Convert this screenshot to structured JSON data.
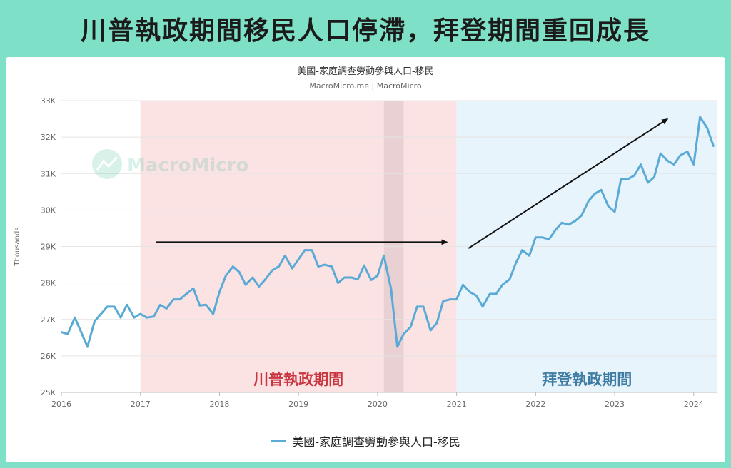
{
  "banner": {
    "title": "川普執政期間移民人口停滯，拜登期間重回成長"
  },
  "chart": {
    "title": "美國-家庭調查勞動參與人口-移民",
    "subtitle": "MacroMicro.me | MacroMicro",
    "watermark": "MacroMicro",
    "ylabel": "Thousands",
    "period_trump": "川普執政期間",
    "period_biden": "拜登執政期間",
    "legend_label": "美國-家庭調查勞動參與人口-移民"
  },
  "chart_data": {
    "type": "line",
    "title": "美國-家庭調查勞動參與人口-移民",
    "subtitle": "MacroMicro.me | MacroMicro",
    "ylabel": "Thousands",
    "xlim": [
      2016,
      2024.3
    ],
    "ylim": [
      25000,
      33000
    ],
    "x_ticks": [
      2016,
      2017,
      2018,
      2019,
      2020,
      2021,
      2022,
      2023,
      2024
    ],
    "y_ticks": [
      {
        "value": 25000,
        "label": "25K"
      },
      {
        "value": 26000,
        "label": "26K"
      },
      {
        "value": 27000,
        "label": "27K"
      },
      {
        "value": 28000,
        "label": "28K"
      },
      {
        "value": 29000,
        "label": "29K"
      },
      {
        "value": 30000,
        "label": "30K"
      },
      {
        "value": 31000,
        "label": "31K"
      },
      {
        "value": 32000,
        "label": "32K"
      },
      {
        "value": 33000,
        "label": "33K"
      }
    ],
    "grid": true,
    "legend_position": "bottom",
    "colors": {
      "line": "#5aaad6",
      "trump_band": "#fbe3e4",
      "biden_band": "#e8f4fb",
      "recession_band": "#e9d0d2",
      "trump_text": "#c9363f",
      "biden_text": "#3f7ca3"
    },
    "shaded_periods": [
      {
        "label": "川普執政期間",
        "from": 2017.0,
        "to": 2021.0
      },
      {
        "label": "拜登執政期間",
        "from": 2021.0,
        "to": 2024.3
      },
      {
        "label": "",
        "from": 2020.08,
        "to": 2020.33
      }
    ],
    "series": [
      {
        "name": "美國-家庭調查勞動參與人口-移民",
        "points": [
          [
            2016.0,
            26650
          ],
          [
            2016.08,
            26600
          ],
          [
            2016.17,
            27050
          ],
          [
            2016.25,
            26650
          ],
          [
            2016.33,
            26250
          ],
          [
            2016.42,
            26950
          ],
          [
            2016.5,
            27150
          ],
          [
            2016.58,
            27350
          ],
          [
            2016.67,
            27350
          ],
          [
            2016.75,
            27050
          ],
          [
            2016.83,
            27400
          ],
          [
            2016.92,
            27050
          ],
          [
            2017.0,
            27150
          ],
          [
            2017.08,
            27050
          ],
          [
            2017.17,
            27080
          ],
          [
            2017.25,
            27400
          ],
          [
            2017.33,
            27300
          ],
          [
            2017.42,
            27550
          ],
          [
            2017.5,
            27550
          ],
          [
            2017.58,
            27700
          ],
          [
            2017.67,
            27850
          ],
          [
            2017.75,
            27380
          ],
          [
            2017.83,
            27400
          ],
          [
            2017.92,
            27150
          ],
          [
            2018.0,
            27750
          ],
          [
            2018.08,
            28200
          ],
          [
            2018.17,
            28450
          ],
          [
            2018.25,
            28300
          ],
          [
            2018.33,
            27950
          ],
          [
            2018.42,
            28150
          ],
          [
            2018.5,
            27900
          ],
          [
            2018.58,
            28100
          ],
          [
            2018.67,
            28350
          ],
          [
            2018.75,
            28450
          ],
          [
            2018.83,
            28750
          ],
          [
            2018.92,
            28400
          ],
          [
            2019.0,
            28650
          ],
          [
            2019.08,
            28900
          ],
          [
            2019.17,
            28900
          ],
          [
            2019.25,
            28450
          ],
          [
            2019.33,
            28500
          ],
          [
            2019.42,
            28450
          ],
          [
            2019.5,
            28000
          ],
          [
            2019.58,
            28150
          ],
          [
            2019.67,
            28150
          ],
          [
            2019.75,
            28100
          ],
          [
            2019.83,
            28480
          ],
          [
            2019.92,
            28080
          ],
          [
            2020.0,
            28200
          ],
          [
            2020.08,
            28750
          ],
          [
            2020.17,
            27850
          ],
          [
            2020.25,
            26250
          ],
          [
            2020.33,
            26600
          ],
          [
            2020.42,
            26800
          ],
          [
            2020.5,
            27350
          ],
          [
            2020.58,
            27350
          ],
          [
            2020.67,
            26700
          ],
          [
            2020.75,
            26900
          ],
          [
            2020.83,
            27500
          ],
          [
            2020.92,
            27550
          ],
          [
            2021.0,
            27550
          ],
          [
            2021.08,
            27950
          ],
          [
            2021.17,
            27750
          ],
          [
            2021.25,
            27650
          ],
          [
            2021.33,
            27350
          ],
          [
            2021.42,
            27700
          ],
          [
            2021.5,
            27700
          ],
          [
            2021.58,
            27950
          ],
          [
            2021.67,
            28100
          ],
          [
            2021.75,
            28550
          ],
          [
            2021.83,
            28900
          ],
          [
            2021.92,
            28750
          ],
          [
            2022.0,
            29250
          ],
          [
            2022.08,
            29250
          ],
          [
            2022.17,
            29200
          ],
          [
            2022.25,
            29450
          ],
          [
            2022.33,
            29650
          ],
          [
            2022.42,
            29600
          ],
          [
            2022.5,
            29700
          ],
          [
            2022.58,
            29850
          ],
          [
            2022.67,
            30250
          ],
          [
            2022.75,
            30450
          ],
          [
            2022.83,
            30550
          ],
          [
            2022.92,
            30100
          ],
          [
            2023.0,
            29950
          ],
          [
            2023.08,
            30850
          ],
          [
            2023.17,
            30850
          ],
          [
            2023.25,
            30950
          ],
          [
            2023.33,
            31250
          ],
          [
            2023.42,
            30750
          ],
          [
            2023.5,
            30900
          ],
          [
            2023.58,
            31550
          ],
          [
            2023.67,
            31350
          ],
          [
            2023.75,
            31250
          ],
          [
            2023.83,
            31500
          ],
          [
            2023.92,
            31600
          ],
          [
            2024.0,
            31250
          ],
          [
            2024.08,
            32550
          ],
          [
            2024.17,
            32250
          ],
          [
            2024.25,
            31750
          ]
        ]
      }
    ],
    "annotations": [
      {
        "type": "arrow",
        "from": [
          2017.2,
          29120
        ],
        "to": [
          2020.88,
          29120
        ]
      },
      {
        "type": "arrow",
        "from": [
          2021.15,
          28950
        ],
        "to": [
          2023.67,
          32500
        ]
      }
    ]
  }
}
